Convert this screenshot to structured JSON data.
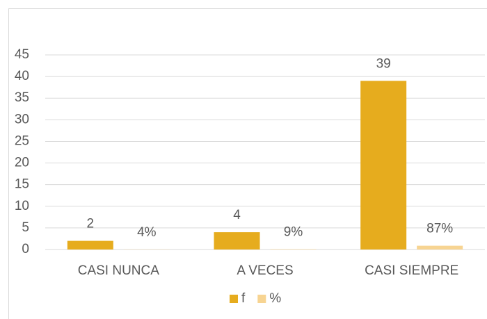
{
  "chart_data": {
    "type": "bar",
    "categories": [
      "CASI NUNCA",
      "A VECES",
      "CASI SIEMPRE"
    ],
    "series": [
      {
        "name": "f",
        "color": "#e6ac1e",
        "values": [
          2,
          4,
          39
        ]
      },
      {
        "name": "%",
        "color": "#f7d492",
        "values": [
          0.04,
          0.09,
          0.87
        ],
        "value_labels": [
          "4%",
          "9%",
          "87%"
        ]
      }
    ],
    "ylim": [
      0,
      45
    ],
    "yticks": [
      0,
      5,
      10,
      15,
      20,
      25,
      30,
      35,
      40,
      45
    ],
    "grid": true,
    "legend": "bottom"
  }
}
